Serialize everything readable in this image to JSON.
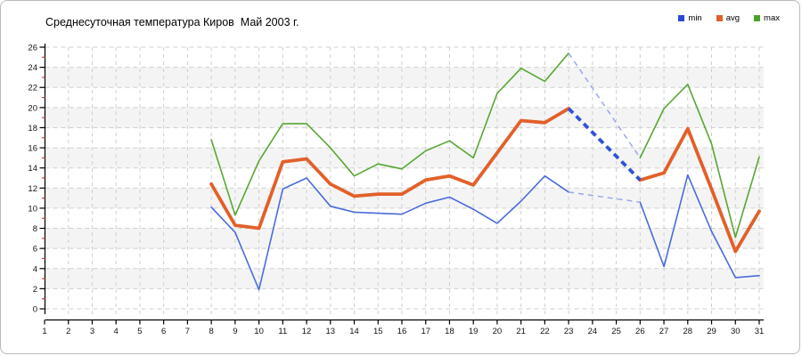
{
  "title": "Среднесуточная температура Киров  Май 2003 г.",
  "legend": [
    {
      "label": "min",
      "color": "#2a49d8"
    },
    {
      "label": "avg",
      "color": "#e0602c"
    },
    {
      "label": "max",
      "color": "#4da02a"
    }
  ],
  "colors": {
    "min_line": "#4a6bdb",
    "avg_line": "#e2602a",
    "max_line": "#57a733",
    "bold_gap_dash": "#2f52d9",
    "thin_gap_dash": "#97a8ec",
    "grid": "#cfcfcf",
    "band": "#f4f4f4",
    "axis": "#000000",
    "minor_tick": "#d04040",
    "tick_text": "#111111"
  },
  "chart_data": {
    "type": "line",
    "title": "Среднесуточная температура Киров  Май 2003 г.",
    "xlabel": "",
    "ylabel": "",
    "x_range": [
      1,
      31
    ],
    "y_range": [
      0,
      26
    ],
    "x_ticks": [
      1,
      2,
      3,
      4,
      5,
      6,
      7,
      8,
      9,
      10,
      11,
      12,
      13,
      14,
      15,
      16,
      17,
      18,
      19,
      20,
      21,
      22,
      23,
      24,
      25,
      26,
      27,
      28,
      29,
      30,
      31
    ],
    "y_ticks": [
      0,
      2,
      4,
      6,
      8,
      10,
      12,
      14,
      16,
      18,
      20,
      22,
      24,
      26
    ],
    "y_minor_ticks": [
      1,
      3,
      5,
      7,
      9,
      11,
      13,
      15,
      17,
      19,
      21,
      23,
      25
    ],
    "grid": true,
    "alternating_bands": true,
    "legend_position": "top-right",
    "missing_days": [
      24,
      25
    ],
    "series": [
      {
        "name": "max",
        "segments": [
          {
            "days": [
              8,
              9,
              10,
              11,
              12,
              13,
              14,
              15,
              16,
              17,
              18,
              19,
              20,
              21,
              22,
              23
            ],
            "values": [
              16.8,
              9.3,
              14.7,
              18.4,
              18.4,
              16.0,
              13.2,
              14.4,
              13.9,
              15.7,
              16.7,
              15.0,
              21.4,
              23.9,
              22.6,
              25.4
            ]
          },
          {
            "days": [
              26,
              27,
              28,
              29,
              30,
              31
            ],
            "values": [
              15.0,
              19.9,
              22.3,
              16.4,
              7.1,
              15.1
            ]
          }
        ]
      },
      {
        "name": "min",
        "segments": [
          {
            "days": [
              8,
              9,
              10,
              11,
              12,
              13,
              14,
              15,
              16,
              17,
              18,
              19,
              20,
              21,
              22,
              23
            ],
            "values": [
              10.1,
              7.6,
              1.9,
              11.9,
              13.0,
              10.2,
              9.6,
              9.5,
              9.4,
              10.5,
              11.1,
              9.9,
              8.5,
              10.7,
              13.2,
              11.6
            ]
          },
          {
            "days": [
              26,
              27,
              28,
              29,
              30,
              31
            ],
            "values": [
              10.6,
              4.2,
              13.3,
              7.7,
              3.1,
              3.3
            ]
          }
        ]
      },
      {
        "name": "avg",
        "segments": [
          {
            "days": [
              8,
              9,
              10,
              11,
              12,
              13,
              14,
              15,
              16,
              17,
              18,
              19,
              20,
              21,
              22,
              23
            ],
            "values": [
              12.4,
              8.3,
              8.0,
              14.6,
              14.9,
              12.4,
              11.2,
              11.4,
              11.4,
              12.8,
              13.2,
              12.3,
              15.5,
              18.7,
              18.5,
              19.9
            ]
          },
          {
            "days": [
              26,
              27,
              28,
              29,
              30,
              31
            ],
            "values": [
              12.8,
              13.5,
              17.9,
              11.9,
              5.7,
              9.7
            ]
          }
        ]
      }
    ],
    "gap_connectors": [
      {
        "series": "max",
        "from_day": 23,
        "from_value": 25.4,
        "to_day": 26,
        "to_value": 15.0,
        "style": "thin-dashed"
      },
      {
        "series": "avg",
        "from_day": 23,
        "from_value": 19.9,
        "to_day": 26,
        "to_value": 12.8,
        "style": "bold-dashed"
      },
      {
        "series": "min",
        "from_day": 23,
        "from_value": 11.6,
        "to_day": 26,
        "to_value": 10.6,
        "style": "thin-dashed"
      }
    ]
  }
}
